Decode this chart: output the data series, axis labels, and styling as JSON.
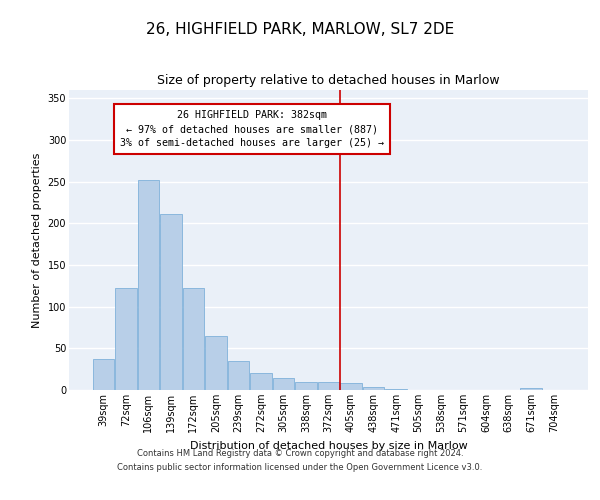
{
  "title": "26, HIGHFIELD PARK, MARLOW, SL7 2DE",
  "subtitle": "Size of property relative to detached houses in Marlow",
  "xlabel": "Distribution of detached houses by size in Marlow",
  "ylabel": "Number of detached properties",
  "categories": [
    "39sqm",
    "72sqm",
    "106sqm",
    "139sqm",
    "172sqm",
    "205sqm",
    "239sqm",
    "272sqm",
    "305sqm",
    "338sqm",
    "372sqm",
    "405sqm",
    "438sqm",
    "471sqm",
    "505sqm",
    "538sqm",
    "571sqm",
    "604sqm",
    "638sqm",
    "671sqm",
    "704sqm"
  ],
  "values": [
    37,
    122,
    252,
    211,
    122,
    65,
    35,
    20,
    14,
    10,
    10,
    9,
    4,
    1,
    0,
    0,
    0,
    0,
    0,
    3,
    0
  ],
  "bar_color": "#b8cfe8",
  "bar_edge_color": "#6fa8d6",
  "ylim": [
    0,
    360
  ],
  "yticks": [
    0,
    50,
    100,
    150,
    200,
    250,
    300,
    350
  ],
  "property_line_x": 10.5,
  "property_line_label": "26 HIGHFIELD PARK: 382sqm",
  "annotation_line1": "← 97% of detached houses are smaller (887)",
  "annotation_line2": "3% of semi-detached houses are larger (25) →",
  "annotation_box_color": "#ffffff",
  "annotation_box_edge_color": "#cc0000",
  "line_color": "#cc0000",
  "footer_line1": "Contains HM Land Registry data © Crown copyright and database right 2024.",
  "footer_line2": "Contains public sector information licensed under the Open Government Licence v3.0.",
  "background_color": "#eaf0f8",
  "grid_color": "#ffffff",
  "title_fontsize": 11,
  "subtitle_fontsize": 9,
  "tick_fontsize": 7,
  "ylabel_fontsize": 8,
  "xlabel_fontsize": 8,
  "footer_fontsize": 6
}
